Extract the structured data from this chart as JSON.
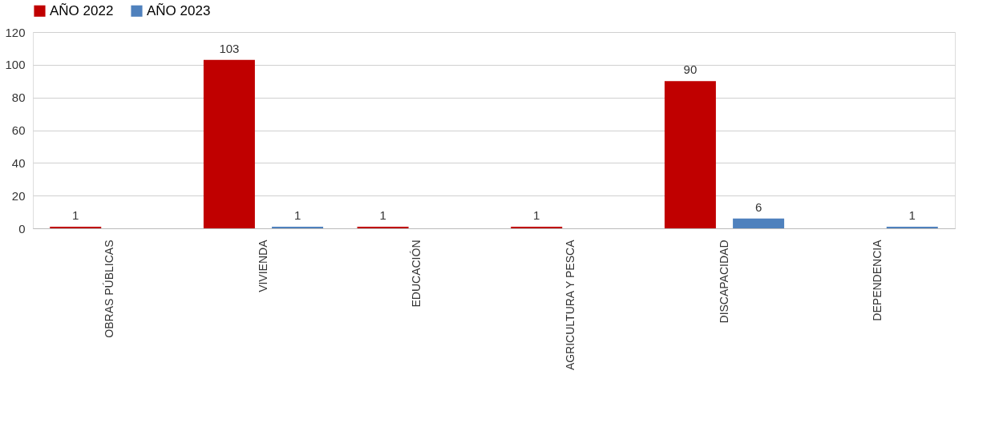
{
  "chart_data": {
    "type": "bar",
    "categories": [
      "OBRAS PÚBLICAS",
      "VIVIENDA",
      "EDUCACIÓN",
      "AGRICULTURA Y PESCA",
      "DISCAPACIDAD",
      "DEPENDENCIA"
    ],
    "series": [
      {
        "name": "AÑO 2022",
        "color": "#c00000",
        "values": [
          1,
          103,
          1,
          1,
          90,
          null
        ]
      },
      {
        "name": "AÑO 2023",
        "color": "#4f81bd",
        "values": [
          null,
          1,
          null,
          null,
          6,
          1
        ]
      }
    ],
    "ylim": [
      0,
      120
    ],
    "yticks": [
      0,
      20,
      40,
      60,
      80,
      100,
      120
    ],
    "grid": "y",
    "legend": "top",
    "data_labels": true
  }
}
